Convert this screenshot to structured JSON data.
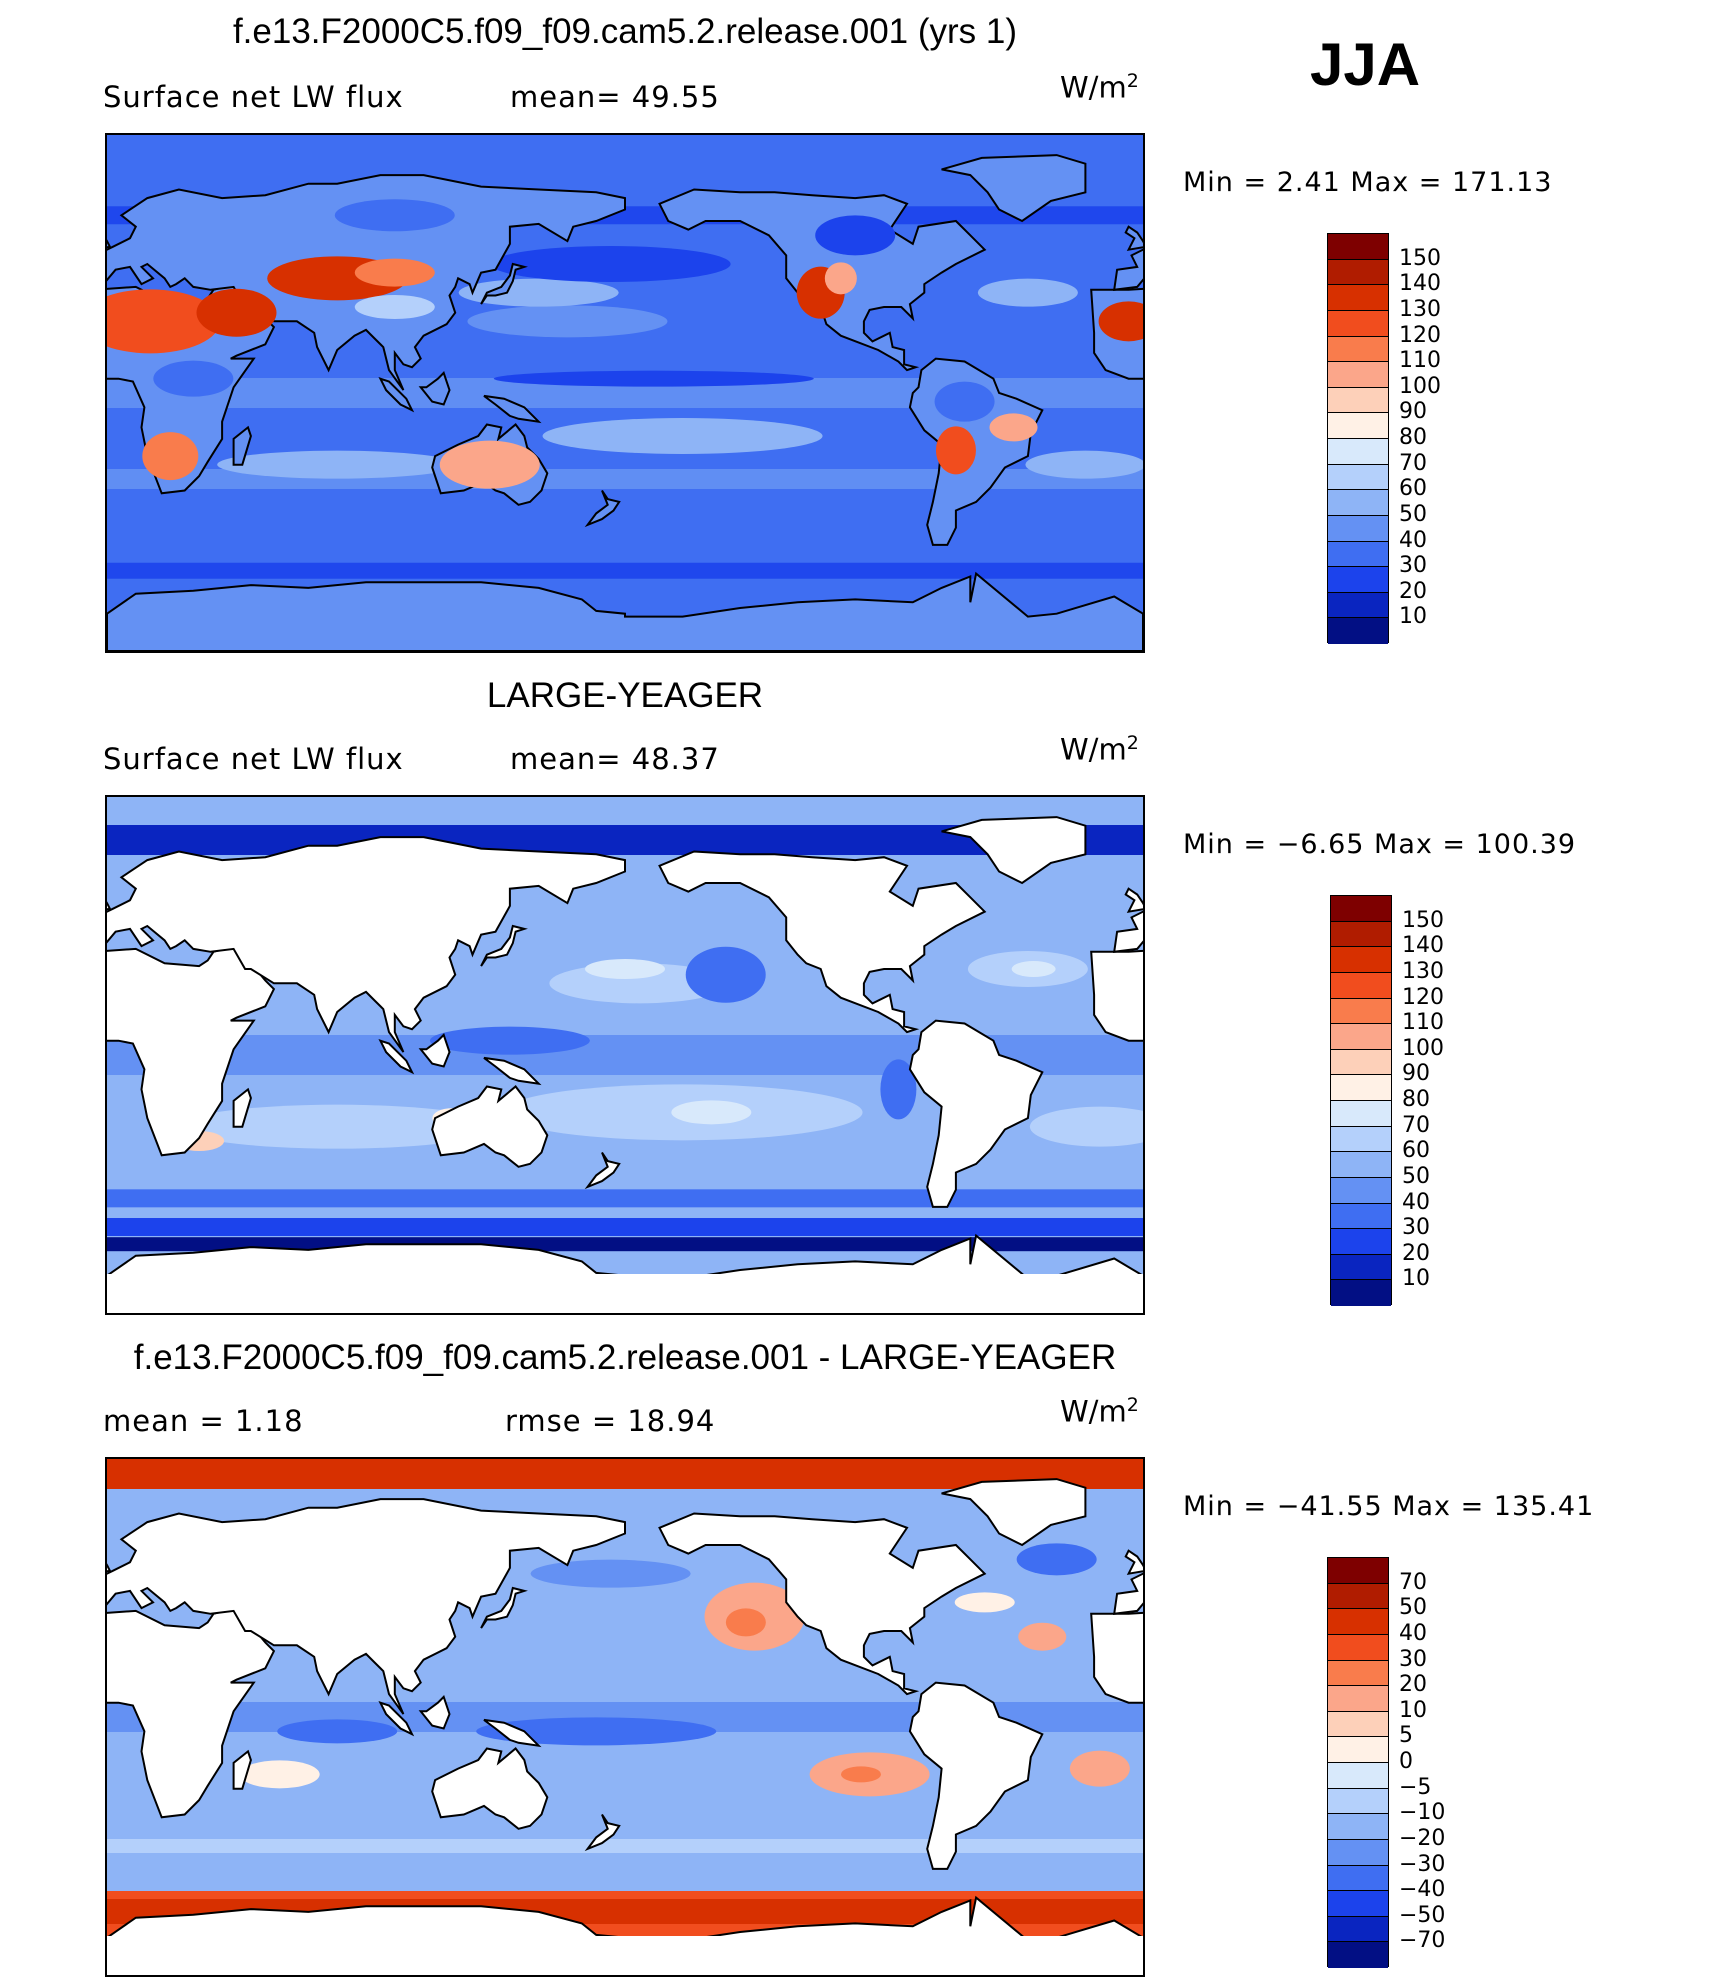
{
  "season": "JJA",
  "panels": [
    {
      "title": "f.e13.F2000C5.f09_f09.cam5.2.release.001 (yrs 1)",
      "left_label": "Surface net LW flux",
      "mid_label": "mean=  49.55",
      "units": "W/m",
      "units_sup": "2",
      "minmax": "Min =    2.41  Max  =  171.13",
      "variant": "model",
      "colorbar": {
        "colors": [
          "#7e0000",
          "#b01c00",
          "#d73000",
          "#f14d1e",
          "#f97c4c",
          "#fba68a",
          "#fdd0b9",
          "#fff1e6",
          "#d8e9fb",
          "#b4d0fb",
          "#8eb4f6",
          "#6491f3",
          "#3f6ef2",
          "#1c43ec",
          "#0a25c0",
          "#020f84"
        ],
        "labels": [
          "150",
          "140",
          "130",
          "120",
          "110",
          "100",
          "90",
          "80",
          "70",
          "60",
          "50",
          "40",
          "30",
          "20",
          "10"
        ]
      }
    },
    {
      "title": "LARGE-YEAGER",
      "left_label": "Surface net LW flux",
      "mid_label": "mean=  48.37",
      "units": "W/m",
      "units_sup": "2",
      "minmax": "Min =   −6.65  Max  =  100.39",
      "variant": "obs",
      "colorbar": {
        "colors": [
          "#7e0000",
          "#b01c00",
          "#d73000",
          "#f14d1e",
          "#f97c4c",
          "#fba68a",
          "#fdd0b9",
          "#fff1e6",
          "#d8e9fb",
          "#b4d0fb",
          "#8eb4f6",
          "#6491f3",
          "#3f6ef2",
          "#1c43ec",
          "#0a25c0",
          "#020f84"
        ],
        "labels": [
          "150",
          "140",
          "130",
          "120",
          "110",
          "100",
          "90",
          "80",
          "70",
          "60",
          "50",
          "40",
          "30",
          "20",
          "10"
        ]
      }
    },
    {
      "title": "f.e13.F2000C5.f09_f09.cam5.2.release.001 - LARGE-YEAGER",
      "left_label": "mean =     1.18",
      "mid_label": "rmse =    18.94",
      "units": "W/m",
      "units_sup": "2",
      "minmax": "Min  = −41.55  Max  =  135.41",
      "variant": "diff",
      "colorbar": {
        "colors": [
          "#7e0000",
          "#b01c00",
          "#d73000",
          "#f14d1e",
          "#f97c4c",
          "#fba68a",
          "#fdd0b9",
          "#fff1e6",
          "#d8e9fb",
          "#b4d0fb",
          "#8eb4f6",
          "#6491f3",
          "#3f6ef2",
          "#1c43ec",
          "#0a25c0",
          "#020f84"
        ],
        "labels": [
          "70",
          "50",
          "40",
          "30",
          "20",
          "10",
          "5",
          "0",
          "−5",
          "−10",
          "−20",
          "−30",
          "−40",
          "−50",
          "−70"
        ]
      }
    }
  ]
}
